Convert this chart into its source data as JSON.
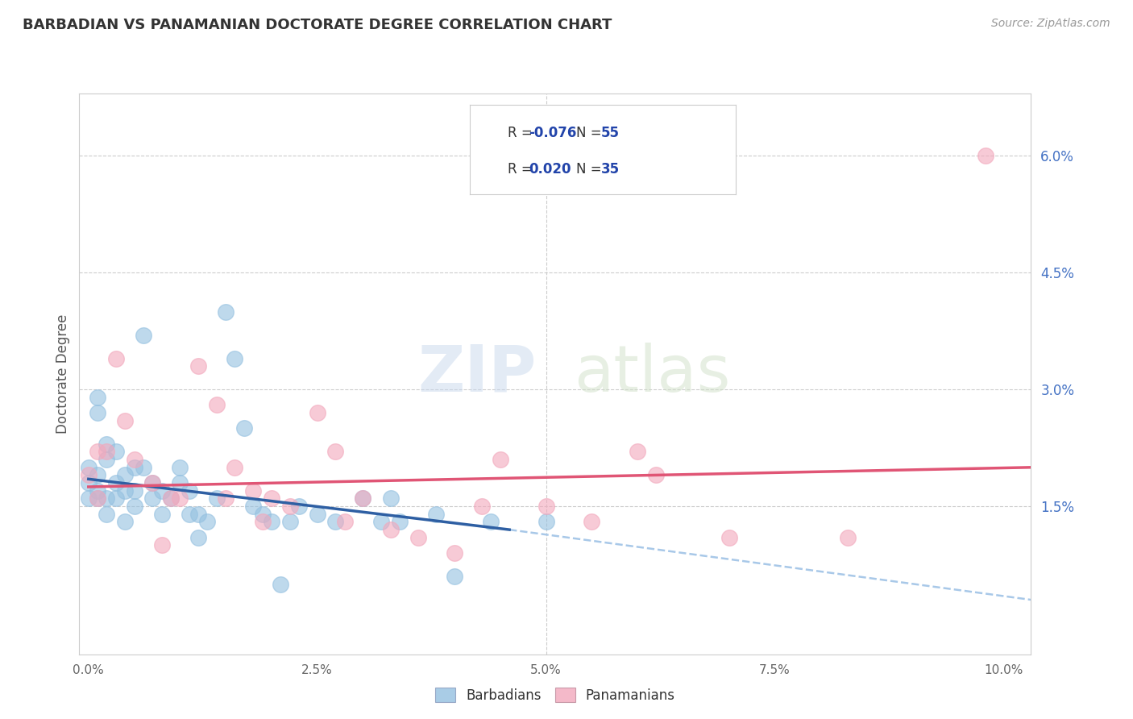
{
  "title": "BARBADIAN VS PANAMANIAN DOCTORATE DEGREE CORRELATION CHART",
  "source": "Source: ZipAtlas.com",
  "ylabel": "Doctorate Degree",
  "ylabel_right_vals": [
    0.06,
    0.045,
    0.03,
    0.015
  ],
  "ylabel_right_labels": [
    "6.0%",
    "4.5%",
    "3.0%",
    "1.5%"
  ],
  "xlim": [
    -0.001,
    0.103
  ],
  "ylim": [
    -0.004,
    0.068
  ],
  "xticks": [
    0.0,
    0.025,
    0.05,
    0.075,
    0.1
  ],
  "xtick_labels": [
    "0.0%",
    "2.5%",
    "5.0%",
    "7.5%",
    "10.0%"
  ],
  "legend_r_barbadian": "-0.076",
  "legend_n_barbadian": "55",
  "legend_r_panamanian": "0.020",
  "legend_n_panamanian": "35",
  "color_barbadian": "#94C0E0",
  "color_panamanian": "#F2A8BC",
  "color_blue_line": "#2E5FA3",
  "color_pink_line": "#E05575",
  "color_dashed": "#A8C8E8",
  "watermark_zip": "ZIP",
  "watermark_atlas": "atlas",
  "barbadian_x": [
    0.0,
    0.0,
    0.0,
    0.001,
    0.001,
    0.001,
    0.001,
    0.001,
    0.002,
    0.002,
    0.002,
    0.002,
    0.003,
    0.003,
    0.003,
    0.004,
    0.004,
    0.004,
    0.005,
    0.005,
    0.005,
    0.006,
    0.006,
    0.007,
    0.007,
    0.008,
    0.008,
    0.009,
    0.01,
    0.01,
    0.011,
    0.011,
    0.012,
    0.012,
    0.013,
    0.014,
    0.015,
    0.016,
    0.017,
    0.018,
    0.019,
    0.02,
    0.021,
    0.022,
    0.023,
    0.025,
    0.027,
    0.03,
    0.032,
    0.033,
    0.034,
    0.038,
    0.04,
    0.044,
    0.05
  ],
  "barbadian_y": [
    0.02,
    0.018,
    0.016,
    0.029,
    0.027,
    0.019,
    0.017,
    0.016,
    0.023,
    0.021,
    0.016,
    0.014,
    0.022,
    0.018,
    0.016,
    0.019,
    0.017,
    0.013,
    0.02,
    0.017,
    0.015,
    0.037,
    0.02,
    0.018,
    0.016,
    0.017,
    0.014,
    0.016,
    0.02,
    0.018,
    0.017,
    0.014,
    0.014,
    0.011,
    0.013,
    0.016,
    0.04,
    0.034,
    0.025,
    0.015,
    0.014,
    0.013,
    0.005,
    0.013,
    0.015,
    0.014,
    0.013,
    0.016,
    0.013,
    0.016,
    0.013,
    0.014,
    0.006,
    0.013,
    0.013
  ],
  "panamanian_x": [
    0.0,
    0.001,
    0.001,
    0.002,
    0.003,
    0.004,
    0.005,
    0.007,
    0.008,
    0.009,
    0.01,
    0.012,
    0.014,
    0.015,
    0.016,
    0.018,
    0.019,
    0.02,
    0.022,
    0.025,
    0.027,
    0.028,
    0.03,
    0.033,
    0.036,
    0.04,
    0.043,
    0.045,
    0.05,
    0.055,
    0.06,
    0.062,
    0.07,
    0.083,
    0.098
  ],
  "panamanian_y": [
    0.019,
    0.022,
    0.016,
    0.022,
    0.034,
    0.026,
    0.021,
    0.018,
    0.01,
    0.016,
    0.016,
    0.033,
    0.028,
    0.016,
    0.02,
    0.017,
    0.013,
    0.016,
    0.015,
    0.027,
    0.022,
    0.013,
    0.016,
    0.012,
    0.011,
    0.009,
    0.015,
    0.021,
    0.015,
    0.013,
    0.022,
    0.019,
    0.011,
    0.011,
    0.06
  ],
  "blue_line_x": [
    0.0,
    0.046
  ],
  "blue_line_y_start": 0.0185,
  "blue_line_y_end": 0.012,
  "dashed_line_x": [
    0.046,
    0.103
  ],
  "dashed_line_y_start": 0.012,
  "dashed_line_y_end": 0.003,
  "pink_line_x": [
    0.0,
    0.103
  ],
  "pink_line_y_start": 0.0175,
  "pink_line_y_end": 0.02
}
